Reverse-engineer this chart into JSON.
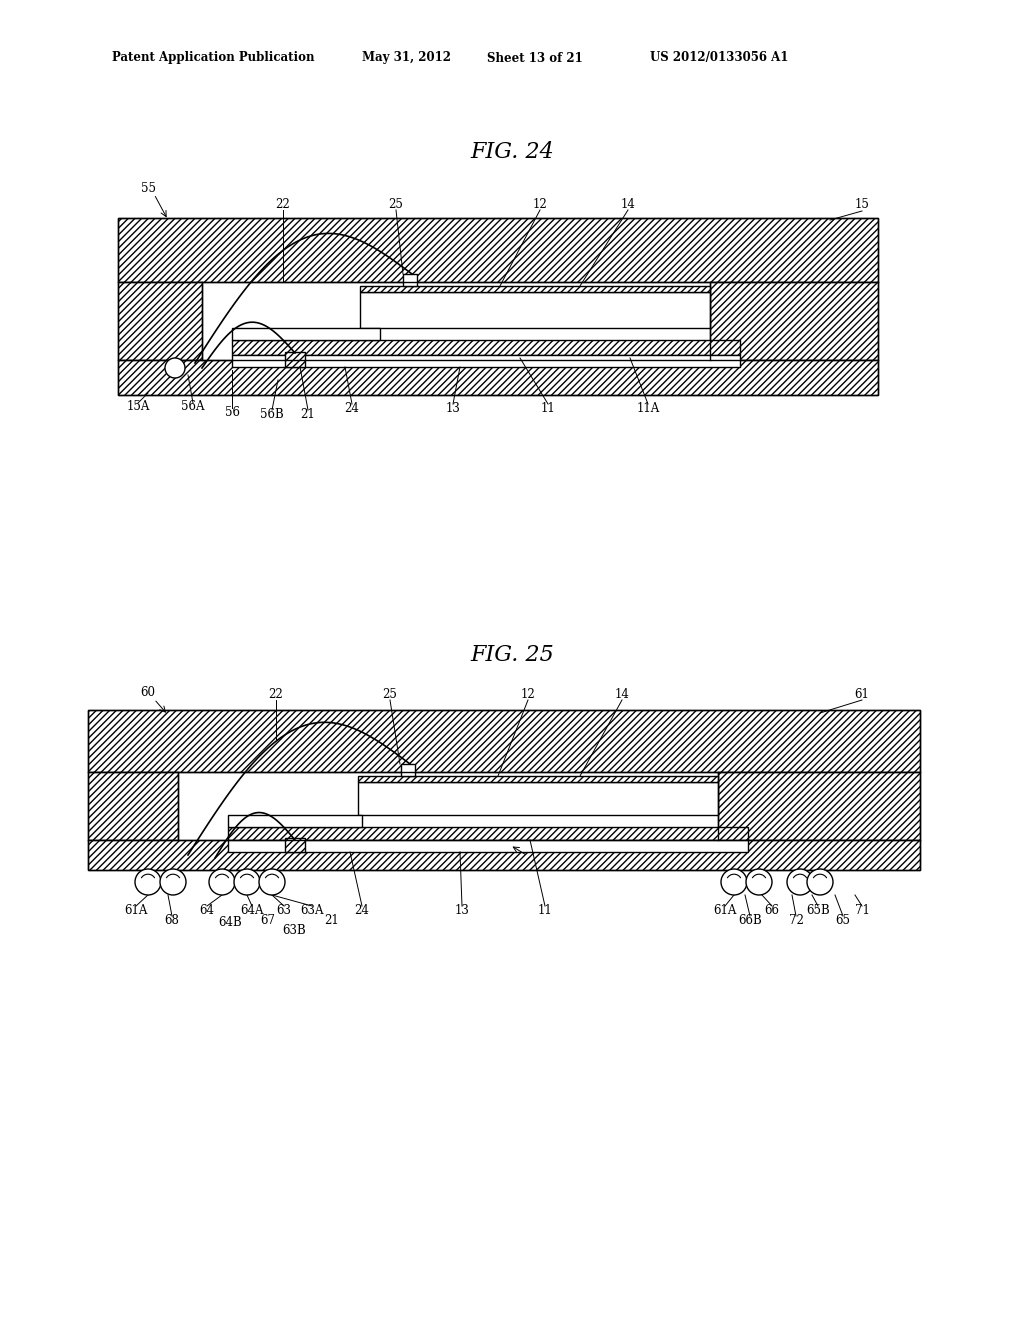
{
  "bg_color": "#ffffff",
  "header_text": "Patent Application Publication",
  "header_date": "May 31, 2012",
  "header_sheet": "Sheet 13 of 21",
  "header_patent": "US 2012/0133056 A1",
  "fig24_title": "FIG. 24",
  "fig25_title": "FIG. 25",
  "line_color": "#000000"
}
